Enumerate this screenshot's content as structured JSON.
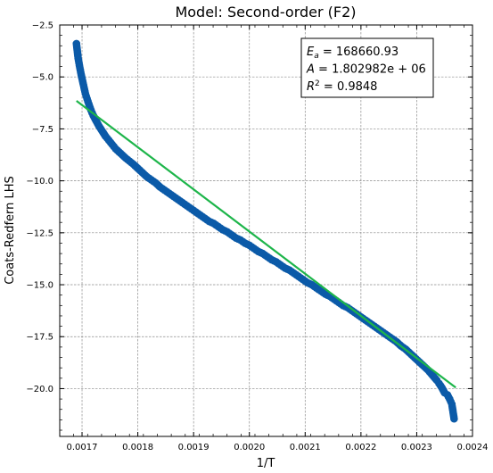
{
  "chart_data": {
    "type": "scatter",
    "title": "Model: Second-order (F2)",
    "xlabel": "1/T",
    "ylabel": "Coats-Redfern LHS",
    "xlim": [
      0.00166,
      0.0024
    ],
    "ylim": [
      -22.3,
      -2.5
    ],
    "xticks": [
      0.0017,
      0.0018,
      0.0019,
      0.002,
      0.0021,
      0.0022,
      0.0023,
      0.0024
    ],
    "xtick_labels": [
      "0.0017",
      "0.0018",
      "0.0019",
      "0.0020",
      "0.0021",
      "0.0022",
      "0.0023",
      "0.0024"
    ],
    "yticks": [
      -2.5,
      -5.0,
      -7.5,
      -10.0,
      -12.5,
      -15.0,
      -17.5,
      -20.0
    ],
    "ytick_labels": [
      "−2.5",
      "−5.0",
      "−7.5",
      "−10.0",
      "−12.5",
      "−15.0",
      "−17.5",
      "−20.0"
    ],
    "grid": true,
    "colors": {
      "points": "#0b5aa8",
      "fit": "#1db54a"
    },
    "annotation": {
      "lines": [
        {
          "prefix": "E",
          "sub": "a",
          "text": " = 168660.93"
        },
        {
          "prefix": "A",
          "sub": "",
          "text": " = 1.802982e + 06"
        },
        {
          "prefix": "R",
          "sup": "2",
          "text": " = 0.9848"
        }
      ],
      "placement": "top-right"
    },
    "series": [
      {
        "kind": "scatter",
        "x": [
          0.00169,
          0.001693,
          0.001696,
          0.0016985,
          0.001701,
          0.0017035,
          0.001706,
          0.001709,
          0.001712,
          0.001716,
          0.00172,
          0.001725,
          0.00173,
          0.001736,
          0.001742,
          0.001748,
          0.001754,
          0.00176,
          0.001766,
          0.001772,
          0.001778,
          0.001785,
          0.001792,
          0.0018,
          0.001808,
          0.001816,
          0.001824,
          0.001832,
          0.00184,
          0.001848,
          0.001856,
          0.001864,
          0.001872,
          0.00188,
          0.001888,
          0.001896,
          0.001904,
          0.001912,
          0.00192,
          0.001928,
          0.001936,
          0.001944,
          0.001952,
          0.00196,
          0.001968,
          0.001976,
          0.001984,
          0.001992,
          0.002,
          0.002008,
          0.002016,
          0.002024,
          0.002032,
          0.00204,
          0.002048,
          0.002056,
          0.002064,
          0.002072,
          0.00208,
          0.002088,
          0.002096,
          0.002104,
          0.002112,
          0.00212,
          0.002128,
          0.002136,
          0.002144,
          0.002152,
          0.00216,
          0.002168,
          0.002176,
          0.002184,
          0.002192,
          0.0022,
          0.002208,
          0.002216,
          0.002224,
          0.002232,
          0.00224,
          0.002248,
          0.002256,
          0.002264,
          0.002272,
          0.00228,
          0.002288,
          0.002296,
          0.002304,
          0.002312,
          0.00232,
          0.002328,
          0.002336,
          0.00234,
          0.002345,
          0.00235,
          0.002355,
          0.002359,
          0.002363,
          0.002367
        ],
        "y": [
          -3.4,
          -4.1,
          -4.55,
          -4.9,
          -5.2,
          -5.5,
          -5.8,
          -6.05,
          -6.3,
          -6.6,
          -6.85,
          -7.1,
          -7.35,
          -7.6,
          -7.85,
          -8.05,
          -8.25,
          -8.45,
          -8.6,
          -8.75,
          -8.9,
          -9.05,
          -9.2,
          -9.4,
          -9.6,
          -9.8,
          -9.95,
          -10.1,
          -10.3,
          -10.45,
          -10.6,
          -10.75,
          -10.9,
          -11.05,
          -11.2,
          -11.35,
          -11.5,
          -11.65,
          -11.8,
          -11.95,
          -12.05,
          -12.2,
          -12.35,
          -12.45,
          -12.6,
          -12.75,
          -12.85,
          -13.0,
          -13.1,
          -13.25,
          -13.4,
          -13.5,
          -13.65,
          -13.8,
          -13.9,
          -14.05,
          -14.2,
          -14.3,
          -14.45,
          -14.6,
          -14.75,
          -14.9,
          -15.0,
          -15.15,
          -15.3,
          -15.45,
          -15.55,
          -15.7,
          -15.85,
          -16.0,
          -16.1,
          -16.25,
          -16.4,
          -16.55,
          -16.7,
          -16.85,
          -17.0,
          -17.15,
          -17.3,
          -17.45,
          -17.6,
          -17.75,
          -17.95,
          -18.1,
          -18.3,
          -18.5,
          -18.7,
          -18.9,
          -19.1,
          -19.35,
          -19.6,
          -19.75,
          -19.95,
          -20.2,
          -20.3,
          -20.5,
          -20.75,
          -21.45
        ]
      },
      {
        "kind": "line",
        "x": [
          0.00169,
          0.00237
        ],
        "y": [
          -6.15,
          -19.95
        ]
      }
    ]
  }
}
